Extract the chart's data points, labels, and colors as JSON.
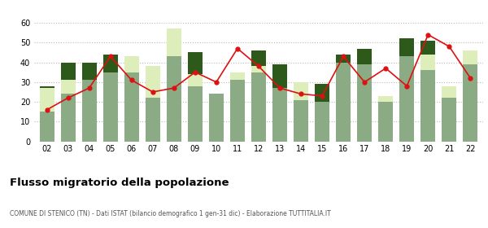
{
  "years": [
    "02",
    "03",
    "04",
    "05",
    "06",
    "07",
    "08",
    "09",
    "10",
    "11",
    "12",
    "13",
    "14",
    "15",
    "16",
    "17",
    "18",
    "19",
    "20",
    "21",
    "22"
  ],
  "iscritti_altri_comuni": [
    15,
    24,
    31,
    35,
    35,
    22,
    43,
    28,
    24,
    31,
    35,
    27,
    21,
    20,
    40,
    39,
    20,
    43,
    36,
    22,
    39
  ],
  "iscritti_estero": [
    12,
    7,
    0,
    0,
    8,
    16,
    14,
    6,
    0,
    4,
    3,
    0,
    9,
    0,
    0,
    0,
    3,
    0,
    8,
    6,
    7
  ],
  "iscritti_altri": [
    1,
    9,
    9,
    9,
    0,
    0,
    0,
    11,
    0,
    0,
    8,
    12,
    0,
    9,
    4,
    8,
    0,
    9,
    7,
    0,
    0
  ],
  "cancellati": [
    16,
    22,
    27,
    43,
    31,
    25,
    27,
    35,
    30,
    47,
    38,
    27,
    24,
    23,
    43,
    30,
    37,
    28,
    54,
    48,
    32
  ],
  "color_altri_comuni": "#8aab84",
  "color_estero": "#ddeebb",
  "color_altri": "#2d5a1b",
  "color_cancellati": "#dd1111",
  "title": "Flusso migratorio della popolazione",
  "subtitle": "COMUNE DI STENICO (TN) - Dati ISTAT (bilancio demografico 1 gen-31 dic) - Elaborazione TUTTITALIA.IT",
  "ylim": [
    0,
    60
  ],
  "yticks": [
    0,
    10,
    20,
    30,
    40,
    50,
    60
  ],
  "background_color": "#ffffff",
  "grid_color": "#bbbbbb"
}
